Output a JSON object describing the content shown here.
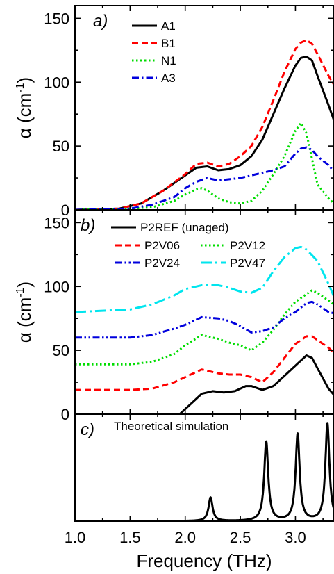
{
  "figure": {
    "xlabel": "Frequency (THz)",
    "colors": {
      "black": "#000000",
      "red": "#ff0000",
      "green": "#00dd00",
      "blue": "#0000dd",
      "cyan": "#00e5ee"
    }
  },
  "chart_data": [
    {
      "type": "line",
      "panel_label": "a)",
      "ylabel_main": "α (cm",
      "ylabel_sup": "-1",
      "ylabel_close": ")",
      "xlim": [
        1.0,
        3.35
      ],
      "ylim": [
        0,
        160
      ],
      "xticks": [
        1.0,
        1.5,
        2.0,
        2.5,
        3.0
      ],
      "xtick_labels": [
        "1.0",
        "1.5",
        "2.0",
        "2.5",
        "3.0"
      ],
      "yticks": [
        0,
        50,
        100,
        150
      ],
      "ytick_labels": [
        "0",
        "50",
        "100",
        "150"
      ],
      "legend_position": "top-center",
      "series": [
        {
          "name": "A1",
          "color": "#000000",
          "dash": "solid",
          "points": [
            [
              1.0,
              0
            ],
            [
              1.4,
              1
            ],
            [
              1.6,
              5
            ],
            [
              1.8,
              15
            ],
            [
              2.0,
              27
            ],
            [
              2.1,
              33
            ],
            [
              2.2,
              34
            ],
            [
              2.3,
              31
            ],
            [
              2.4,
              32
            ],
            [
              2.5,
              35
            ],
            [
              2.6,
              42
            ],
            [
              2.7,
              55
            ],
            [
              2.8,
              75
            ],
            [
              2.9,
              95
            ],
            [
              3.0,
              113
            ],
            [
              3.05,
              119
            ],
            [
              3.1,
              120
            ],
            [
              3.15,
              117
            ],
            [
              3.2,
              105
            ],
            [
              3.3,
              82
            ],
            [
              3.35,
              70
            ]
          ]
        },
        {
          "name": "B1",
          "color": "#ff0000",
          "dash": "dash",
          "points": [
            [
              1.0,
              0
            ],
            [
              1.4,
              1
            ],
            [
              1.6,
              5
            ],
            [
              1.8,
              15
            ],
            [
              2.0,
              28
            ],
            [
              2.1,
              36
            ],
            [
              2.2,
              37
            ],
            [
              2.3,
              34
            ],
            [
              2.4,
              36
            ],
            [
              2.5,
              42
            ],
            [
              2.6,
              50
            ],
            [
              2.7,
              65
            ],
            [
              2.8,
              86
            ],
            [
              2.9,
              108
            ],
            [
              3.0,
              126
            ],
            [
              3.05,
              131
            ],
            [
              3.1,
              133
            ],
            [
              3.15,
              130
            ],
            [
              3.2,
              122
            ],
            [
              3.3,
              105
            ],
            [
              3.35,
              98
            ]
          ]
        },
        {
          "name": "N1",
          "color": "#00dd00",
          "dash": "dot",
          "points": [
            [
              1.0,
              0
            ],
            [
              1.5,
              1
            ],
            [
              1.7,
              2
            ],
            [
              1.9,
              7
            ],
            [
              2.0,
              12
            ],
            [
              2.1,
              16
            ],
            [
              2.15,
              17
            ],
            [
              2.2,
              15
            ],
            [
              2.3,
              9
            ],
            [
              2.4,
              6
            ],
            [
              2.5,
              5
            ],
            [
              2.6,
              7
            ],
            [
              2.7,
              15
            ],
            [
              2.8,
              28
            ],
            [
              2.9,
              42
            ],
            [
              3.0,
              62
            ],
            [
              3.05,
              68
            ],
            [
              3.1,
              60
            ],
            [
              3.15,
              40
            ],
            [
              3.2,
              20
            ],
            [
              3.3,
              9
            ],
            [
              3.35,
              5
            ]
          ]
        },
        {
          "name": "A3",
          "color": "#0000dd",
          "dash": "dashdot",
          "points": [
            [
              1.0,
              0
            ],
            [
              1.5,
              1
            ],
            [
              1.7,
              4
            ],
            [
              1.9,
              10
            ],
            [
              2.0,
              17
            ],
            [
              2.1,
              22
            ],
            [
              2.2,
              25
            ],
            [
              2.3,
              23
            ],
            [
              2.4,
              24
            ],
            [
              2.5,
              25
            ],
            [
              2.6,
              27
            ],
            [
              2.7,
              29
            ],
            [
              2.8,
              31
            ],
            [
              2.9,
              34
            ],
            [
              3.0,
              44
            ],
            [
              3.05,
              48
            ],
            [
              3.1,
              49
            ],
            [
              3.15,
              47
            ],
            [
              3.2,
              42
            ],
            [
              3.3,
              35
            ],
            [
              3.35,
              30
            ]
          ]
        }
      ]
    },
    {
      "type": "line",
      "panel_label": "b)",
      "ylabel_main": "α (cm",
      "ylabel_sup": "-1",
      "ylabel_close": ")",
      "xlim": [
        1.0,
        3.35
      ],
      "ylim": [
        0,
        160
      ],
      "xticks": [
        1.0,
        1.5,
        2.0,
        2.5,
        3.0
      ],
      "xtick_labels": [
        "1.0",
        "1.5",
        "2.0",
        "2.5",
        "3.0"
      ],
      "yticks": [
        0,
        50,
        100,
        150
      ],
      "ytick_labels": [
        "0",
        "50",
        "100",
        "150"
      ],
      "legend_position": "top",
      "series": [
        {
          "name": "P2REF (unaged)",
          "color": "#000000",
          "dash": "solid",
          "points": [
            [
              1.6,
              -30
            ],
            [
              1.8,
              -10
            ],
            [
              1.95,
              0
            ],
            [
              2.05,
              8
            ],
            [
              2.15,
              16
            ],
            [
              2.25,
              18
            ],
            [
              2.35,
              17
            ],
            [
              2.45,
              18
            ],
            [
              2.55,
              22
            ],
            [
              2.6,
              22
            ],
            [
              2.7,
              19
            ],
            [
              2.8,
              22
            ],
            [
              2.9,
              30
            ],
            [
              3.0,
              38
            ],
            [
              3.1,
              46
            ],
            [
              3.15,
              44
            ],
            [
              3.2,
              36
            ],
            [
              3.3,
              20
            ],
            [
              3.35,
              15
            ]
          ]
        },
        {
          "name": "P2V06",
          "color": "#ff0000",
          "dash": "dash",
          "points": [
            [
              1.0,
              19
            ],
            [
              1.5,
              19
            ],
            [
              1.7,
              20
            ],
            [
              1.9,
              25
            ],
            [
              2.0,
              29
            ],
            [
              2.15,
              35
            ],
            [
              2.3,
              32
            ],
            [
              2.4,
              31
            ],
            [
              2.5,
              31
            ],
            [
              2.6,
              29
            ],
            [
              2.7,
              25
            ],
            [
              2.8,
              33
            ],
            [
              2.9,
              44
            ],
            [
              3.0,
              55
            ],
            [
              3.1,
              61
            ],
            [
              3.15,
              61
            ],
            [
              3.2,
              58
            ],
            [
              3.3,
              52
            ],
            [
              3.35,
              48
            ]
          ]
        },
        {
          "name": "P2V12",
          "color": "#00dd00",
          "dash": "dot",
          "points": [
            [
              1.0,
              39
            ],
            [
              1.5,
              39
            ],
            [
              1.7,
              41
            ],
            [
              1.9,
              47
            ],
            [
              2.0,
              54
            ],
            [
              2.15,
              62
            ],
            [
              2.3,
              59
            ],
            [
              2.4,
              56
            ],
            [
              2.5,
              54
            ],
            [
              2.6,
              50
            ],
            [
              2.7,
              56
            ],
            [
              2.8,
              66
            ],
            [
              2.9,
              78
            ],
            [
              3.0,
              88
            ],
            [
              3.1,
              94
            ],
            [
              3.15,
              97
            ],
            [
              3.2,
              95
            ],
            [
              3.3,
              89
            ],
            [
              3.35,
              86
            ]
          ]
        },
        {
          "name": "P2V24",
          "color": "#0000dd",
          "dash": "dashdotdot",
          "points": [
            [
              1.0,
              60
            ],
            [
              1.5,
              60
            ],
            [
              1.7,
              62
            ],
            [
              1.9,
              67
            ],
            [
              2.0,
              70
            ],
            [
              2.15,
              76
            ],
            [
              2.3,
              75
            ],
            [
              2.4,
              73
            ],
            [
              2.5,
              69
            ],
            [
              2.6,
              64
            ],
            [
              2.7,
              65
            ],
            [
              2.8,
              68
            ],
            [
              2.9,
              75
            ],
            [
              3.0,
              80
            ],
            [
              3.1,
              87
            ],
            [
              3.15,
              88
            ],
            [
              3.2,
              86
            ],
            [
              3.3,
              80
            ],
            [
              3.35,
              79
            ]
          ]
        },
        {
          "name": "P2V47",
          "color": "#00e5ee",
          "dash": "longdash",
          "points": [
            [
              1.0,
              80
            ],
            [
              1.5,
              82
            ],
            [
              1.7,
              86
            ],
            [
              1.9,
              93
            ],
            [
              2.0,
              98
            ],
            [
              2.15,
              101
            ],
            [
              2.3,
              101
            ],
            [
              2.4,
              99
            ],
            [
              2.5,
              96
            ],
            [
              2.6,
              95
            ],
            [
              2.7,
              99
            ],
            [
              2.8,
              112
            ],
            [
              2.9,
              123
            ],
            [
              3.0,
              130
            ],
            [
              3.05,
              131
            ],
            [
              3.1,
              129
            ],
            [
              3.2,
              120
            ],
            [
              3.3,
              102
            ],
            [
              3.35,
              92
            ]
          ]
        }
      ]
    },
    {
      "type": "line",
      "panel_label": "c)",
      "annotation": "Theoretical simulation",
      "xlim": [
        1.0,
        3.35
      ],
      "ylim": [
        0,
        1
      ],
      "xticks": [
        1.0,
        1.5,
        2.0,
        2.5,
        3.0
      ],
      "xtick_labels": [
        "1.0",
        "1.5",
        "2.0",
        "2.5",
        "3.0"
      ],
      "y_ticks_shown": false,
      "series": [
        {
          "name": "",
          "color": "#000000",
          "dash": "solid",
          "peaks": [
            {
              "center": 2.23,
              "height": 0.22,
              "width": 0.022
            },
            {
              "center": 2.735,
              "height": 0.74,
              "width": 0.022
            },
            {
              "center": 3.02,
              "height": 0.81,
              "width": 0.022
            },
            {
              "center": 3.29,
              "height": 0.91,
              "width": 0.022
            }
          ],
          "baseline_start": 1.85
        }
      ]
    }
  ]
}
